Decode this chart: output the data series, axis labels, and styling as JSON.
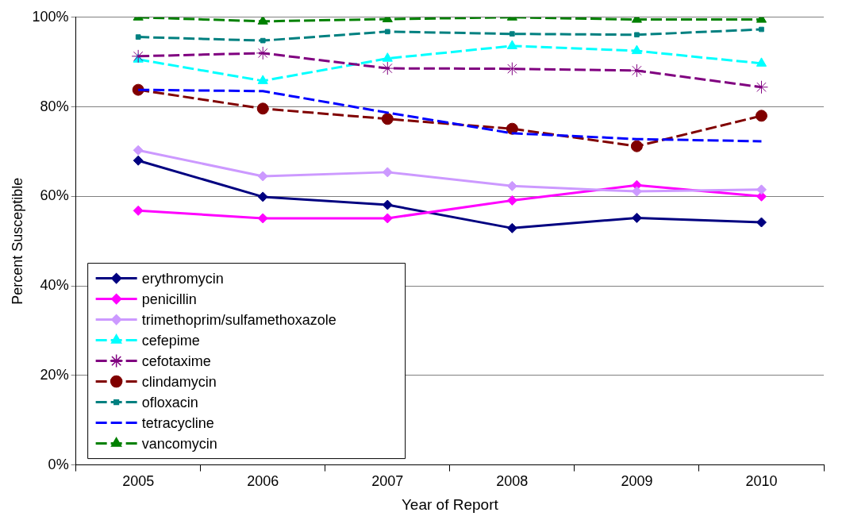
{
  "chart_data": {
    "type": "line",
    "xlabel": "Year of Report",
    "ylabel": "Percent Susceptible",
    "categories": [
      "2005",
      "2006",
      "2007",
      "2008",
      "2009",
      "2010"
    ],
    "ylim": [
      0,
      100
    ],
    "yticks": [
      {
        "value": 0,
        "label": "0%"
      },
      {
        "value": 20,
        "label": "20%"
      },
      {
        "value": 40,
        "label": "40%"
      },
      {
        "value": 60,
        "label": "60%"
      },
      {
        "value": 80,
        "label": "80%"
      },
      {
        "value": 100,
        "label": "100%"
      }
    ],
    "grid": "y",
    "legend": "bottom left",
    "series": [
      {
        "name": "erythromycin",
        "color": "#000080",
        "marker": "diamond",
        "line_style": "solid",
        "values": [
          68.0,
          59.9,
          58.1,
          52.9,
          55.2,
          54.2
        ]
      },
      {
        "name": "penicillin",
        "color": "#ff00ff",
        "marker": "diamond",
        "line_style": "solid",
        "values": [
          56.8,
          55.1,
          55.1,
          59.1,
          62.5,
          60.0
        ]
      },
      {
        "name": "trimethoprim/sulfamethoxazole",
        "color": "#cc99ff",
        "marker": "diamond",
        "line_style": "solid",
        "values": [
          70.3,
          64.5,
          65.4,
          62.3,
          61.1,
          61.5
        ]
      },
      {
        "name": "cefepime",
        "color": "#00ffff",
        "marker": "triangle",
        "line_style": "dashed",
        "values": [
          90.6,
          85.8,
          90.8,
          93.6,
          92.5,
          89.7
        ]
      },
      {
        "name": "cefotaxime",
        "color": "#800080",
        "marker": "cross",
        "line_style": "dashed",
        "values": [
          91.3,
          92.0,
          88.6,
          88.5,
          88.1,
          84.4
        ]
      },
      {
        "name": "clindamycin",
        "color": "#800000",
        "marker": "circle",
        "line_style": "dashed",
        "values": [
          83.8,
          79.6,
          77.3,
          75.1,
          71.2,
          78.0
        ]
      },
      {
        "name": "ofloxacin",
        "color": "#008080",
        "marker": "square",
        "line_style": "dashed",
        "values": [
          95.6,
          94.8,
          96.8,
          96.3,
          96.1,
          97.3
        ]
      },
      {
        "name": "tetracycline",
        "color": "#0000ff",
        "marker": "none",
        "line_style": "dashed",
        "values": [
          83.8,
          83.5,
          78.7,
          74.1,
          72.8,
          72.3
        ]
      },
      {
        "name": "vancomycin",
        "color": "#008000",
        "marker": "triangle",
        "line_style": "dashed",
        "values": [
          100,
          99.1,
          99.6,
          100,
          99.5,
          99.5
        ]
      }
    ]
  }
}
